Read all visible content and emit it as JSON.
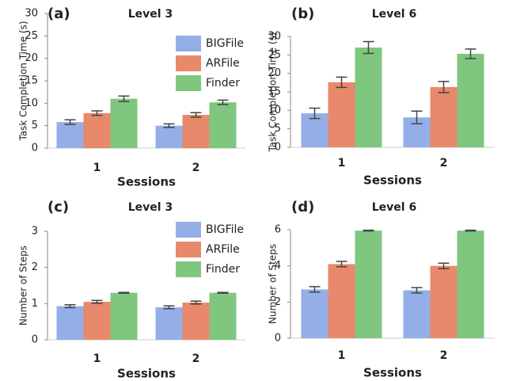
{
  "chart_data": [
    {
      "type": "bar",
      "panel_label": "(a)",
      "title": "Level 3",
      "xlabel": "Sessions",
      "ylabel": "Task Completion Time (s)",
      "categories": [
        "1",
        "2"
      ],
      "ylim": [
        0,
        30
      ],
      "yticks": [
        0,
        5,
        10,
        15,
        20,
        25,
        30
      ],
      "legend": "upper right",
      "series": [
        {
          "name": "BIGFile",
          "color": "#94aee8",
          "values": [
            5.8,
            5.0
          ],
          "errors": [
            0.5,
            0.4
          ]
        },
        {
          "name": "ARFile",
          "color": "#e8896b",
          "values": [
            7.8,
            7.4
          ],
          "errors": [
            0.5,
            0.5
          ]
        },
        {
          "name": "Finder",
          "color": "#7fc77f",
          "values": [
            11.0,
            10.2
          ],
          "errors": [
            0.6,
            0.5
          ]
        }
      ]
    },
    {
      "type": "bar",
      "panel_label": "(b)",
      "title": "Level 6",
      "xlabel": "Sessions",
      "ylabel": "Task Completion Time (s)",
      "categories": [
        "1",
        "2"
      ],
      "ylim": [
        0,
        30
      ],
      "yticks": [
        0,
        5,
        10,
        15,
        20,
        25,
        30
      ],
      "series": [
        {
          "color": "#94aee8",
          "values": [
            9.2,
            8.1
          ],
          "errors": [
            1.4,
            1.7
          ]
        },
        {
          "color": "#e8896b",
          "values": [
            17.6,
            16.3
          ],
          "errors": [
            1.4,
            1.5
          ]
        },
        {
          "color": "#7fc77f",
          "values": [
            27.0,
            25.3
          ],
          "errors": [
            1.6,
            1.3
          ]
        }
      ]
    },
    {
      "type": "bar",
      "panel_label": "(c)",
      "title": "Level 3",
      "xlabel": "Sessions",
      "ylabel": "Number of Steps",
      "categories": [
        "1",
        "2"
      ],
      "ylim": [
        0,
        3
      ],
      "yticks": [
        0,
        1,
        2,
        3
      ],
      "legend": "upper right",
      "series": [
        {
          "name": "BIGFile",
          "color": "#94aee8",
          "values": [
            0.93,
            0.9
          ],
          "errors": [
            0.04,
            0.04
          ]
        },
        {
          "name": "ARFile",
          "color": "#e8896b",
          "values": [
            1.05,
            1.03
          ],
          "errors": [
            0.04,
            0.04
          ]
        },
        {
          "name": "Finder",
          "color": "#7fc77f",
          "values": [
            1.3,
            1.3
          ],
          "errors": [
            0.01,
            0.01
          ]
        }
      ]
    },
    {
      "type": "bar",
      "panel_label": "(d)",
      "title": "Level 6",
      "xlabel": "Sessions",
      "ylabel": "Number of Steps",
      "categories": [
        "1",
        "2"
      ],
      "ylim": [
        0,
        6
      ],
      "yticks": [
        0,
        2,
        4,
        6
      ],
      "series": [
        {
          "color": "#94aee8",
          "values": [
            2.7,
            2.65
          ],
          "errors": [
            0.15,
            0.15
          ]
        },
        {
          "color": "#e8896b",
          "values": [
            4.1,
            4.0
          ],
          "errors": [
            0.15,
            0.15
          ]
        },
        {
          "color": "#7fc77f",
          "values": [
            5.95,
            5.95
          ],
          "errors": [
            0.02,
            0.02
          ]
        }
      ]
    }
  ]
}
